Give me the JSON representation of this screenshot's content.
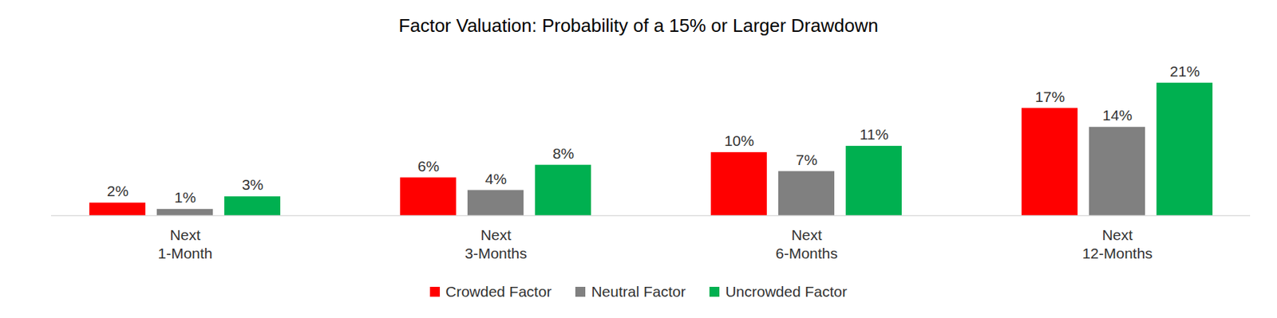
{
  "chart_data": {
    "type": "bar",
    "title": "Factor Valuation: Probability of a 15% or Larger Drawdown",
    "categories": [
      "Next\n1-Month",
      "Next\n3-Months",
      "Next\n6-Months",
      "Next\n12-Months"
    ],
    "series": [
      {
        "name": "Crowded Factor",
        "color": "#ff0000",
        "values": [
          2,
          6,
          10,
          17
        ],
        "value_labels": [
          "2%",
          "6%",
          "10%",
          "17%"
        ]
      },
      {
        "name": "Neutral Factor",
        "color": "#808080",
        "values": [
          1,
          4,
          7,
          14
        ],
        "value_labels": [
          "1%",
          "4%",
          "7%",
          "14%"
        ]
      },
      {
        "name": "Uncrowded Factor",
        "color": "#00b050",
        "values": [
          3,
          8,
          11,
          21
        ],
        "value_labels": [
          "3%",
          "8%",
          "11%",
          "21%"
        ]
      }
    ],
    "ylim": [
      0,
      24
    ],
    "yticks": [],
    "grid": false,
    "legend": "bottom",
    "data_labels": true,
    "tick_labels": "x"
  }
}
